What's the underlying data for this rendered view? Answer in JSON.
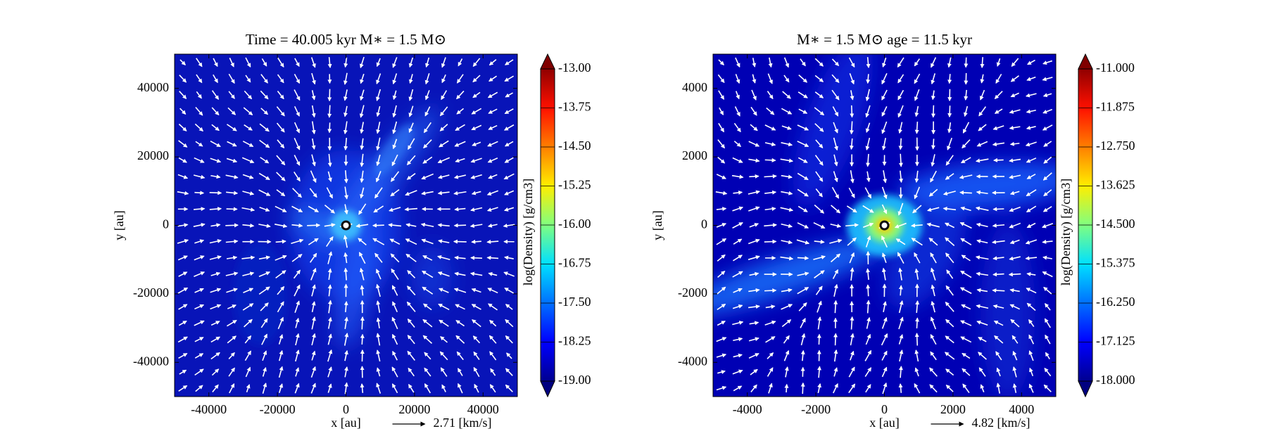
{
  "chart_data": [
    {
      "type": "heatmap",
      "title": "Time = 40.005 kyr    M∗ = 1.5 M⊙",
      "xlabel": "x [au]",
      "ylabel": "y [au]",
      "xlim": [
        -50000,
        50000
      ],
      "ylim": [
        -50000,
        50000
      ],
      "xticks": [
        -40000,
        -20000,
        0,
        20000,
        40000
      ],
      "yticks": [
        -40000,
        -20000,
        0,
        20000,
        40000
      ],
      "colorbar": {
        "label": "log(Density) [g/cm3]",
        "lim": [
          -19,
          -13
        ],
        "ticks": [
          {
            "value": -13,
            "label": "-13.00"
          },
          {
            "value": -13.75,
            "label": "-13.75"
          },
          {
            "value": -14.5,
            "label": "-14.50"
          },
          {
            "value": -15.25,
            "label": "-15.25"
          },
          {
            "value": -16,
            "label": "-16.00"
          },
          {
            "value": -16.75,
            "label": "-16.75"
          },
          {
            "value": -17.5,
            "label": "-17.50"
          },
          {
            "value": -18.25,
            "label": "-18.25"
          },
          {
            "value": -19,
            "label": "-19.00"
          }
        ]
      },
      "quiver_key": {
        "value": 2.71,
        "label": "2.71 [km/s]"
      }
    },
    {
      "type": "heatmap",
      "title": "M∗ = 1.5 M⊙          age = 11.5 kyr",
      "xlabel": "x [au]",
      "ylabel": "y [au]",
      "xlim": [
        -5000,
        5000
      ],
      "ylim": [
        -5000,
        5000
      ],
      "xticks": [
        -4000,
        -2000,
        0,
        2000,
        4000
      ],
      "yticks": [
        -4000,
        -2000,
        0,
        2000,
        4000
      ],
      "colorbar": {
        "label": "log(Density) [g/cm3]",
        "lim": [
          -18,
          -11
        ],
        "ticks": [
          {
            "value": -11,
            "label": "-11.000"
          },
          {
            "value": -11.875,
            "label": "-11.875"
          },
          {
            "value": -12.75,
            "label": "-12.750"
          },
          {
            "value": -13.625,
            "label": "-13.625"
          },
          {
            "value": -14.5,
            "label": "-14.500"
          },
          {
            "value": -15.375,
            "label": "-15.375"
          },
          {
            "value": -16.25,
            "label": "-16.250"
          },
          {
            "value": -17.125,
            "label": "-17.125"
          },
          {
            "value": -18,
            "label": "-18.000"
          }
        ]
      },
      "quiver_key": {
        "value": 4.82,
        "label": "4.82 [km/s]"
      }
    }
  ]
}
